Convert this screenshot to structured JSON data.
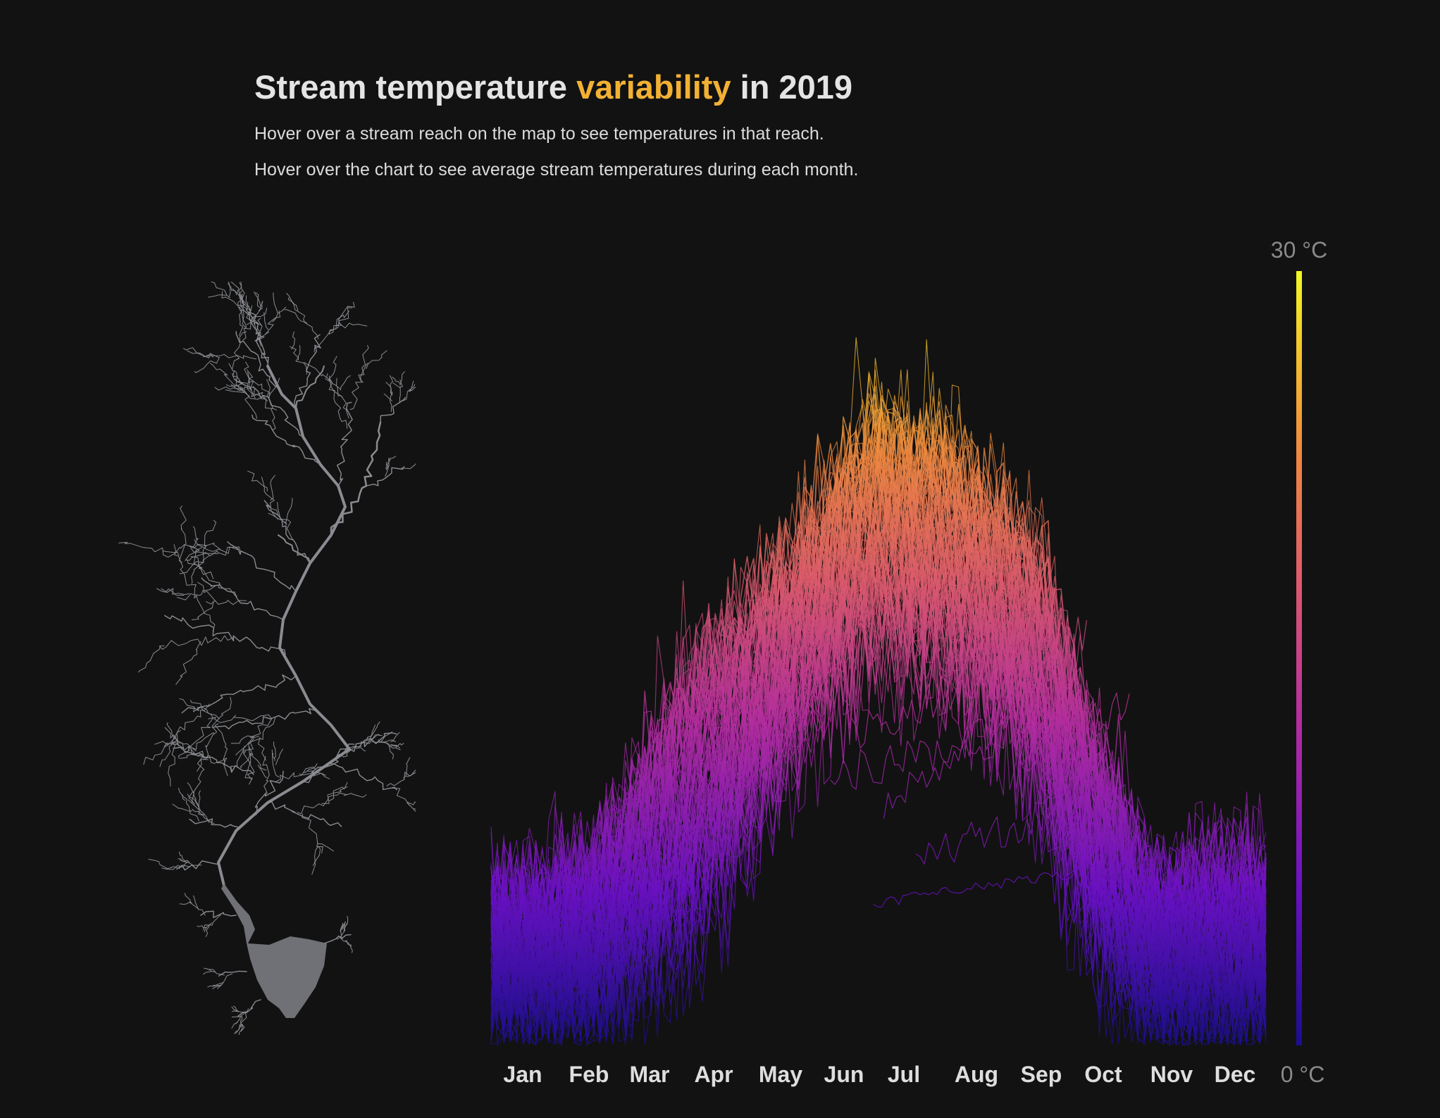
{
  "header": {
    "title_pre": "Stream temperature ",
    "title_highlight": "variability",
    "title_post": " in 2019",
    "subtitle_1": "Hover over a stream reach on the map to see temperatures in that reach.",
    "subtitle_2": "Hover over the chart to see average stream temperatures during each month."
  },
  "colors": {
    "background": "#121212",
    "highlight": "#f2b134",
    "map_stream": "#8a8c91",
    "palette": [
      "#1a0e8f",
      "#6a10c4",
      "#b52d9f",
      "#dc5a6c",
      "#f08a3d",
      "#f4c52b",
      "#f0f921"
    ]
  },
  "chart_data": {
    "type": "line",
    "title": "Stream temperature variability in 2019",
    "months": [
      "Jan",
      "Feb",
      "Mar",
      "Apr",
      "May",
      "Jun",
      "Jul",
      "Aug",
      "Sep",
      "Oct",
      "Nov",
      "Dec"
    ],
    "ylim": [
      0,
      30
    ],
    "color_scale": {
      "max_label": "30 °C",
      "min_label": "0 °C"
    },
    "daily_envelope": {
      "day": [
        1,
        15,
        32,
        46,
        60,
        75,
        91,
        105,
        121,
        135,
        152,
        166,
        182,
        196,
        213,
        227,
        244,
        258,
        274,
        288,
        305,
        319,
        335,
        350,
        365
      ],
      "max": [
        8.5,
        8,
        10,
        9,
        13,
        15,
        19,
        18,
        21,
        23,
        25.5,
        27,
        29.5,
        28,
        28,
        24.5,
        23.5,
        22,
        16,
        16,
        9.5,
        8,
        10,
        12,
        11
      ],
      "upper": [
        5.5,
        5.5,
        6,
        6.5,
        8.5,
        11,
        13.5,
        15,
        16.5,
        18,
        20,
        22,
        24,
        23,
        23,
        21.5,
        20,
        18.5,
        14,
        10.5,
        7,
        6,
        6.5,
        6.5,
        6.5
      ],
      "lower": [
        1.5,
        1.5,
        1.5,
        1.5,
        2,
        3,
        4,
        6,
        8.5,
        10.5,
        13,
        14.5,
        16,
        15.5,
        15,
        14,
        12.5,
        10,
        6,
        3.5,
        1.5,
        1,
        1,
        1,
        1.5
      ],
      "min": [
        0,
        0,
        0,
        0,
        0,
        0,
        1,
        2,
        4.5,
        7,
        9,
        10,
        11,
        11,
        10.5,
        9.5,
        8,
        5,
        2,
        0,
        0,
        0,
        0,
        0,
        0
      ]
    }
  }
}
